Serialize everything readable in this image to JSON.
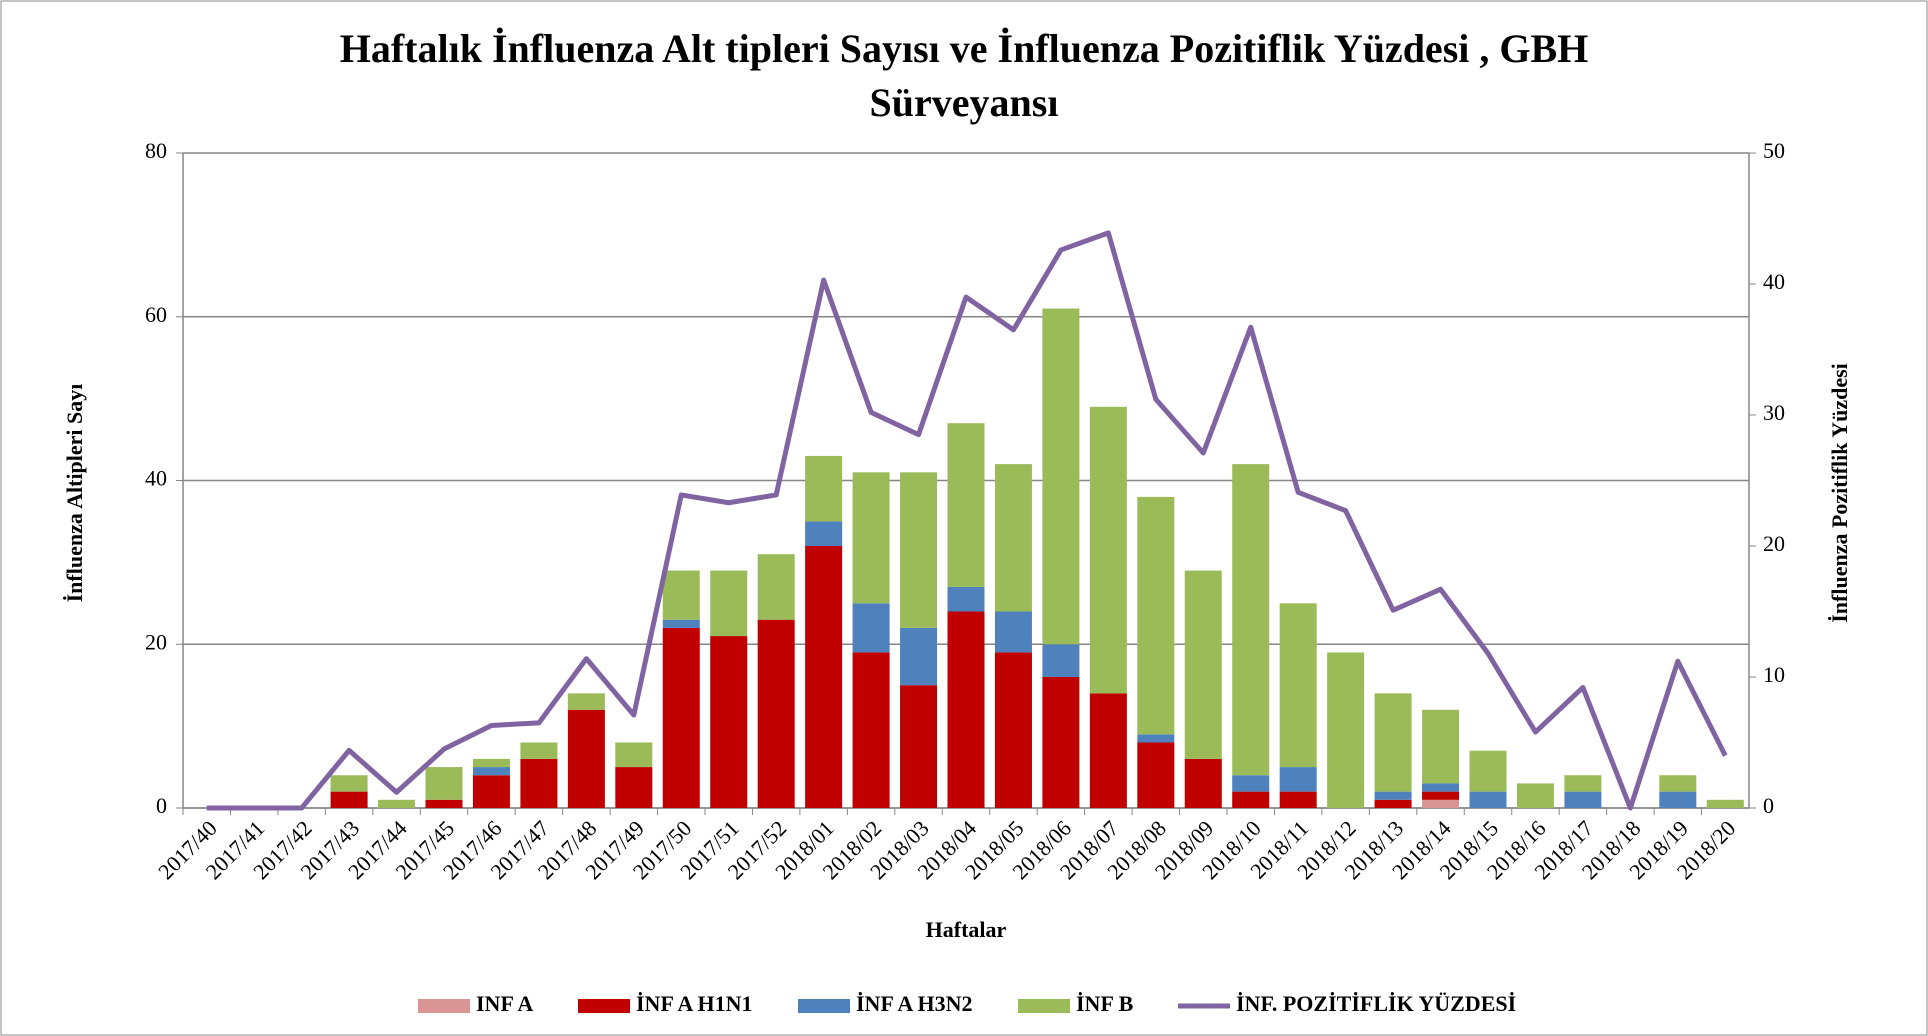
{
  "chart_data": {
    "type": "bar",
    "stacked": true,
    "title": "Haftalık İnfluenza Alt tipleri Sayısı ve İnfluenza Pozitiflik Yüzdesi , GBH Sürveyansı",
    "x_label": "Haftalar",
    "y_label": "İnfluenza Altipleri Sayı",
    "y2_label": "İnfluenza Pozitiflik Yüzdesi",
    "categories": [
      "2017/40",
      "2017/41",
      "2017/42",
      "2017/43",
      "2017/44",
      "2017/45",
      "2017/46",
      "2017/47",
      "2017/48",
      "2017/49",
      "2017/50",
      "2017/51",
      "2017/52",
      "2018/01",
      "2018/02",
      "2018/03",
      "2018/04",
      "2018/05",
      "2018/06",
      "2018/07",
      "2018/08",
      "2018/09",
      "2018/10",
      "2018/11",
      "2018/12",
      "2018/13",
      "2018/14",
      "2018/15",
      "2018/16",
      "2018/17",
      "2018/18",
      "2018/19",
      "2018/20"
    ],
    "series": [
      {
        "name": "INF A",
        "color": "#d99694",
        "values": [
          0,
          0,
          0,
          0,
          0,
          0,
          0,
          0,
          0,
          0,
          0,
          0,
          0,
          0,
          0,
          0,
          0,
          0,
          0,
          0,
          0,
          0,
          0,
          0,
          0,
          0,
          1,
          0,
          0,
          0,
          0,
          0,
          0
        ]
      },
      {
        "name": "İNF A H1N1",
        "color": "#c00000",
        "values": [
          0,
          0,
          0,
          2,
          0,
          1,
          4,
          6,
          12,
          5,
          22,
          21,
          23,
          32,
          19,
          15,
          24,
          19,
          16,
          14,
          8,
          6,
          2,
          2,
          0,
          1,
          1,
          0,
          0,
          0,
          0,
          0,
          0
        ]
      },
      {
        "name": "İNF A H3N2",
        "color": "#4f81bd",
        "values": [
          0,
          0,
          0,
          0,
          0,
          0,
          1,
          0,
          0,
          0,
          1,
          0,
          0,
          3,
          6,
          7,
          3,
          5,
          4,
          0,
          1,
          0,
          2,
          3,
          0,
          1,
          1,
          2,
          0,
          2,
          0,
          2,
          0
        ]
      },
      {
        "name": "İNF B",
        "color": "#9bbb59",
        "values": [
          0,
          0,
          0,
          2,
          1,
          4,
          1,
          2,
          2,
          3,
          6,
          8,
          8,
          8,
          16,
          19,
          20,
          18,
          41,
          35,
          29,
          23,
          38,
          20,
          19,
          12,
          9,
          5,
          3,
          2,
          0,
          2,
          1
        ]
      },
      {
        "name": "İNF. POZİTİFLİK YÜZDESİ",
        "color": "#8064a2",
        "type": "line",
        "axis": "y2",
        "values": [
          0,
          0,
          0,
          4.4,
          1.2,
          4.5,
          6.3,
          6.5,
          11.4,
          7.1,
          23.9,
          23.3,
          23.9,
          40.3,
          30.2,
          28.5,
          39.0,
          36.5,
          42.6,
          43.9,
          31.2,
          27.1,
          36.7,
          24.1,
          22.7,
          15.1,
          16.7,
          11.8,
          5.8,
          9.2,
          0,
          11.2,
          4.0
        ]
      }
    ],
    "ylim": [
      0,
      80
    ],
    "yticks": [
      0,
      20,
      40,
      60,
      80
    ],
    "y2lim": [
      0,
      50
    ],
    "y2ticks": [
      0,
      10,
      20,
      30,
      40,
      50
    ],
    "grid": true,
    "legend": "bottom"
  }
}
